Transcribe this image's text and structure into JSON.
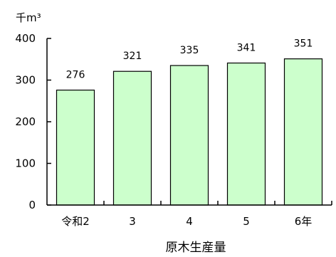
{
  "chart_data": {
    "type": "bar",
    "categories": [
      "令和2",
      "3",
      "4",
      "5",
      "6年"
    ],
    "values": [
      276,
      321,
      335,
      341,
      351
    ],
    "value_labels": [
      "276",
      "321",
      "335",
      "341",
      "351"
    ],
    "unit_label": "千m³",
    "xlabel": "原木生産量",
    "ylabel": "",
    "ylim": [
      0,
      400
    ],
    "yticks": [
      0,
      100,
      200,
      300,
      400
    ],
    "ytick_labels": [
      "0",
      "100",
      "200",
      "300",
      "400"
    ],
    "grid": false,
    "legend": "none",
    "bar_color": "#ccffcc",
    "bar_stroke": "#000000"
  }
}
